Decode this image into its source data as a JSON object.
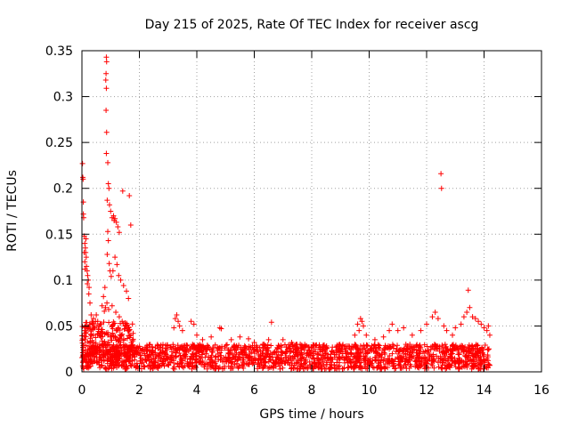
{
  "chart_data": {
    "type": "scatter",
    "title": "Day 215 of 2025, Rate Of TEC Index for receiver ascg",
    "xlabel": "GPS time / hours",
    "ylabel": "ROTI / TECUs",
    "xlim": [
      0,
      16
    ],
    "ylim": [
      0,
      0.35
    ],
    "xticks": [
      0,
      2,
      4,
      6,
      8,
      10,
      12,
      14,
      16
    ],
    "yticks": [
      0,
      0.05,
      0.1,
      0.15,
      0.2,
      0.25,
      0.3,
      0.35
    ],
    "xtick_labels": [
      "0",
      "2",
      "4",
      "6",
      "8",
      "10",
      "12",
      "14",
      "16"
    ],
    "ytick_labels": [
      "0",
      "0.05",
      "0.1",
      "0.15",
      "0.2",
      "0.25",
      "0.3",
      "0.35"
    ],
    "grid": true,
    "marker": "+",
    "color": "#ff0000",
    "baseline_band": {
      "x_range": [
        0,
        14.2
      ],
      "y_min": 0.003,
      "y_max": 0.03,
      "note": "dense band of points across the full observation window"
    },
    "series": [
      {
        "name": "ROTI",
        "points": [
          [
            0.02,
            0.227
          ],
          [
            0.03,
            0.212
          ],
          [
            0.04,
            0.21
          ],
          [
            0.05,
            0.185
          ],
          [
            0.05,
            0.172
          ],
          [
            0.06,
            0.168
          ],
          [
            0.08,
            0.148
          ],
          [
            0.1,
            0.14
          ],
          [
            0.12,
            0.135
          ],
          [
            0.13,
            0.13
          ],
          [
            0.15,
            0.125
          ],
          [
            0.16,
            0.115
          ],
          [
            0.18,
            0.11
          ],
          [
            0.2,
            0.105
          ],
          [
            0.22,
            0.1
          ],
          [
            0.25,
            0.092
          ],
          [
            0.1,
            0.12
          ],
          [
            0.08,
            0.13
          ],
          [
            0.14,
            0.145
          ],
          [
            0.11,
            0.112
          ],
          [
            0.19,
            0.096
          ],
          [
            0.24,
            0.085
          ],
          [
            0.28,
            0.075
          ],
          [
            0.32,
            0.062
          ],
          [
            0.85,
            0.343
          ],
          [
            0.86,
            0.338
          ],
          [
            0.84,
            0.325
          ],
          [
            0.83,
            0.318
          ],
          [
            0.85,
            0.309
          ],
          [
            0.84,
            0.285
          ],
          [
            0.86,
            0.261
          ],
          [
            0.85,
            0.238
          ],
          [
            0.9,
            0.228
          ],
          [
            0.92,
            0.205
          ],
          [
            0.94,
            0.2
          ],
          [
            0.88,
            0.187
          ],
          [
            0.96,
            0.182
          ],
          [
            1.0,
            0.175
          ],
          [
            1.05,
            0.168
          ],
          [
            1.1,
            0.17
          ],
          [
            1.12,
            0.165
          ],
          [
            1.15,
            0.167
          ],
          [
            1.2,
            0.163
          ],
          [
            1.25,
            0.158
          ],
          [
            1.3,
            0.152
          ],
          [
            1.42,
            0.197
          ],
          [
            1.65,
            0.192
          ],
          [
            1.7,
            0.16
          ],
          [
            0.9,
            0.153
          ],
          [
            0.92,
            0.143
          ],
          [
            0.88,
            0.128
          ],
          [
            0.95,
            0.118
          ],
          [
            0.98,
            0.11
          ],
          [
            1.02,
            0.104
          ],
          [
            1.08,
            0.11
          ],
          [
            1.15,
            0.125
          ],
          [
            1.22,
            0.117
          ],
          [
            1.28,
            0.105
          ],
          [
            1.35,
            0.1
          ],
          [
            1.45,
            0.094
          ],
          [
            1.55,
            0.088
          ],
          [
            1.62,
            0.08
          ],
          [
            0.8,
            0.092
          ],
          [
            0.75,
            0.082
          ],
          [
            0.7,
            0.072
          ],
          [
            0.78,
            0.066
          ],
          [
            0.82,
            0.07
          ],
          [
            0.87,
            0.075
          ],
          [
            0.93,
            0.068
          ],
          [
            1.05,
            0.072
          ],
          [
            1.18,
            0.065
          ],
          [
            1.3,
            0.06
          ],
          [
            1.4,
            0.055
          ],
          [
            1.5,
            0.05
          ],
          [
            1.6,
            0.045
          ],
          [
            1.7,
            0.04
          ],
          [
            0.4,
            0.058
          ],
          [
            0.5,
            0.062
          ],
          [
            0.55,
            0.055
          ],
          [
            0.6,
            0.05
          ],
          [
            0.45,
            0.048
          ],
          [
            0.35,
            0.055
          ],
          [
            3.25,
            0.058
          ],
          [
            3.3,
            0.062
          ],
          [
            3.35,
            0.055
          ],
          [
            3.4,
            0.05
          ],
          [
            3.2,
            0.048
          ],
          [
            3.5,
            0.045
          ],
          [
            3.8,
            0.055
          ],
          [
            3.9,
            0.052
          ],
          [
            4.0,
            0.04
          ],
          [
            4.2,
            0.035
          ],
          [
            4.5,
            0.038
          ],
          [
            4.8,
            0.048
          ],
          [
            4.85,
            0.047
          ],
          [
            5.2,
            0.035
          ],
          [
            5.5,
            0.038
          ],
          [
            5.8,
            0.036
          ],
          [
            6.0,
            0.032
          ],
          [
            6.3,
            0.03
          ],
          [
            6.6,
            0.054
          ],
          [
            6.5,
            0.035
          ],
          [
            7.0,
            0.035
          ],
          [
            7.3,
            0.032
          ],
          [
            7.6,
            0.03
          ],
          [
            8.0,
            0.026
          ],
          [
            8.5,
            0.026
          ],
          [
            9.0,
            0.028
          ],
          [
            9.5,
            0.04
          ],
          [
            9.6,
            0.052
          ],
          [
            9.7,
            0.058
          ],
          [
            9.75,
            0.055
          ],
          [
            9.8,
            0.05
          ],
          [
            9.65,
            0.045
          ],
          [
            9.9,
            0.04
          ],
          [
            10.2,
            0.035
          ],
          [
            10.5,
            0.038
          ],
          [
            10.7,
            0.045
          ],
          [
            10.8,
            0.052
          ],
          [
            11.0,
            0.045
          ],
          [
            11.2,
            0.048
          ],
          [
            11.5,
            0.04
          ],
          [
            11.8,
            0.045
          ],
          [
            12.0,
            0.052
          ],
          [
            12.2,
            0.06
          ],
          [
            12.3,
            0.065
          ],
          [
            12.4,
            0.058
          ],
          [
            12.5,
            0.216
          ],
          [
            12.52,
            0.2
          ],
          [
            12.6,
            0.05
          ],
          [
            12.7,
            0.045
          ],
          [
            12.9,
            0.04
          ],
          [
            13.0,
            0.048
          ],
          [
            13.2,
            0.052
          ],
          [
            13.3,
            0.06
          ],
          [
            13.4,
            0.065
          ],
          [
            13.45,
            0.089
          ],
          [
            13.5,
            0.07
          ],
          [
            13.6,
            0.06
          ],
          [
            13.7,
            0.058
          ],
          [
            13.8,
            0.055
          ],
          [
            13.9,
            0.052
          ],
          [
            14.0,
            0.048
          ],
          [
            14.1,
            0.045
          ],
          [
            14.15,
            0.05
          ],
          [
            14.2,
            0.04
          ]
        ]
      }
    ]
  }
}
